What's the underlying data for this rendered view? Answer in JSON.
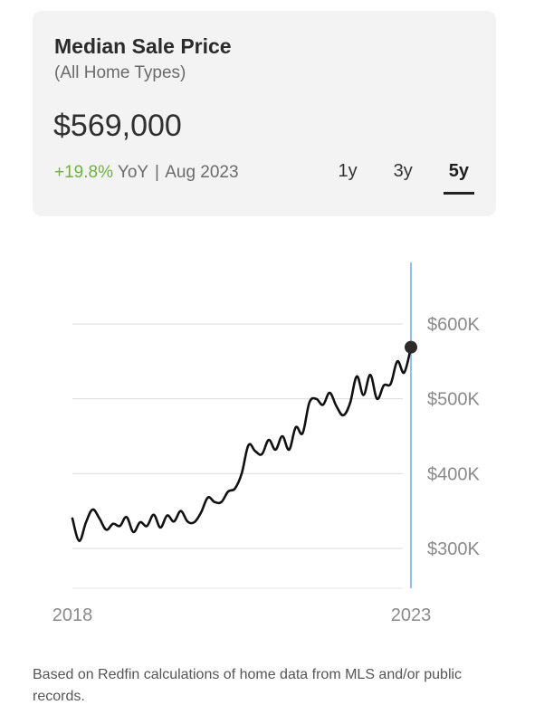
{
  "card": {
    "title": "Median Sale Price",
    "subtitle": "(All Home Types)",
    "price": "$569,000",
    "change_pct": "+19.8%",
    "change_suffix": "YoY",
    "separator": "|",
    "period": "Aug 2023",
    "tabs": [
      {
        "label": "1y",
        "active": false
      },
      {
        "label": "3y",
        "active": false
      },
      {
        "label": "5y",
        "active": true
      }
    ],
    "change_color": "#6db33f"
  },
  "chart_data": {
    "type": "line",
    "title": "",
    "xlabel": "",
    "ylabel": "",
    "x_tick_labels": [
      "2018",
      "2023"
    ],
    "y_tick_labels": [
      "$300K",
      "$400K",
      "$500K",
      "$600K"
    ],
    "y_ticks": [
      300000,
      400000,
      500000,
      600000
    ],
    "ylim": [
      250000,
      650000
    ],
    "grid": true,
    "legend": "none",
    "line_color": "#111111",
    "marker_line_color": "#6aaed6",
    "series": [
      {
        "values": [
          340000,
          310000,
          335000,
          352000,
          340000,
          325000,
          333000,
          330000,
          342000,
          322000,
          335000,
          330000,
          345000,
          328000,
          344000,
          336000,
          350000,
          336000,
          335000,
          348000,
          368000,
          362000,
          362000,
          376000,
          380000,
          400000,
          438000,
          430000,
          426000,
          445000,
          432000,
          450000,
          432000,
          462000,
          454000,
          495000,
          500000,
          492000,
          508000,
          490000,
          478000,
          494000,
          530000,
          505000,
          532000,
          500000,
          518000,
          520000,
          550000,
          535000,
          569000
        ]
      }
    ],
    "last_point": {
      "label": "Aug 2023",
      "value": 569000
    }
  },
  "footnote": "Based on Redfin calculations of home data from MLS and/or public records."
}
